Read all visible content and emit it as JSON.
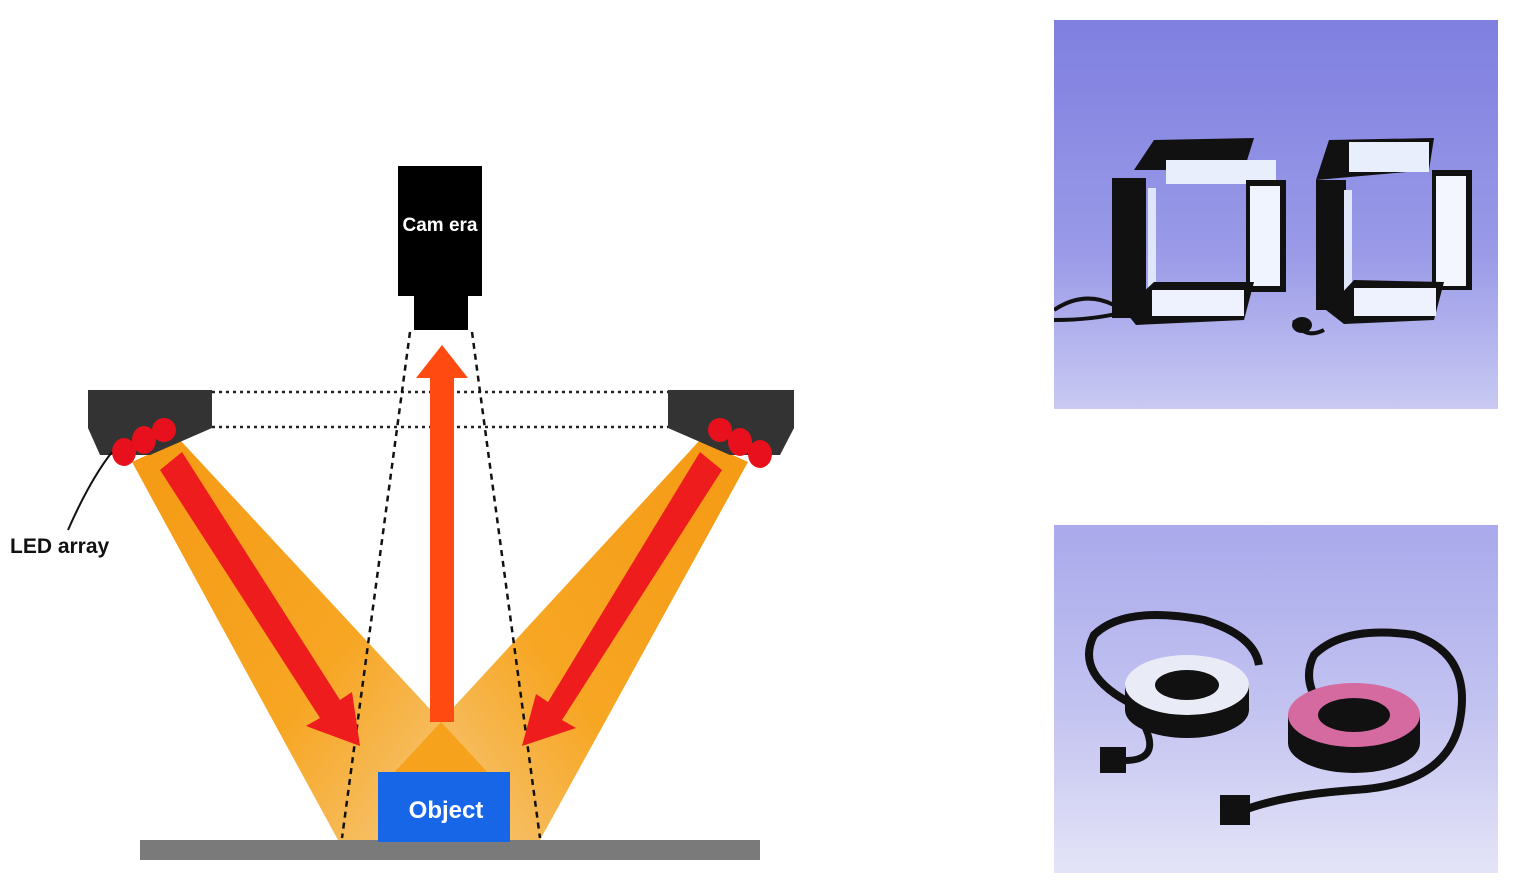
{
  "diagram": {
    "camera_label": "Cam era",
    "object_label": "Object",
    "led_label": "LED array"
  },
  "photos": {
    "top": {
      "subject": "two square LED light units photo"
    },
    "bottom": {
      "subject": "two LED ring lights with cables photo"
    }
  },
  "colors": {
    "beam": "#f7a21a",
    "arrow_red": "#ee1c1c",
    "arrow_orange": "#ff4a12",
    "led": "#e8101c",
    "object": "#1766e8",
    "housing": "#333333",
    "floor": "#7a7a7a",
    "photo_bg": "#8f8fe6"
  }
}
